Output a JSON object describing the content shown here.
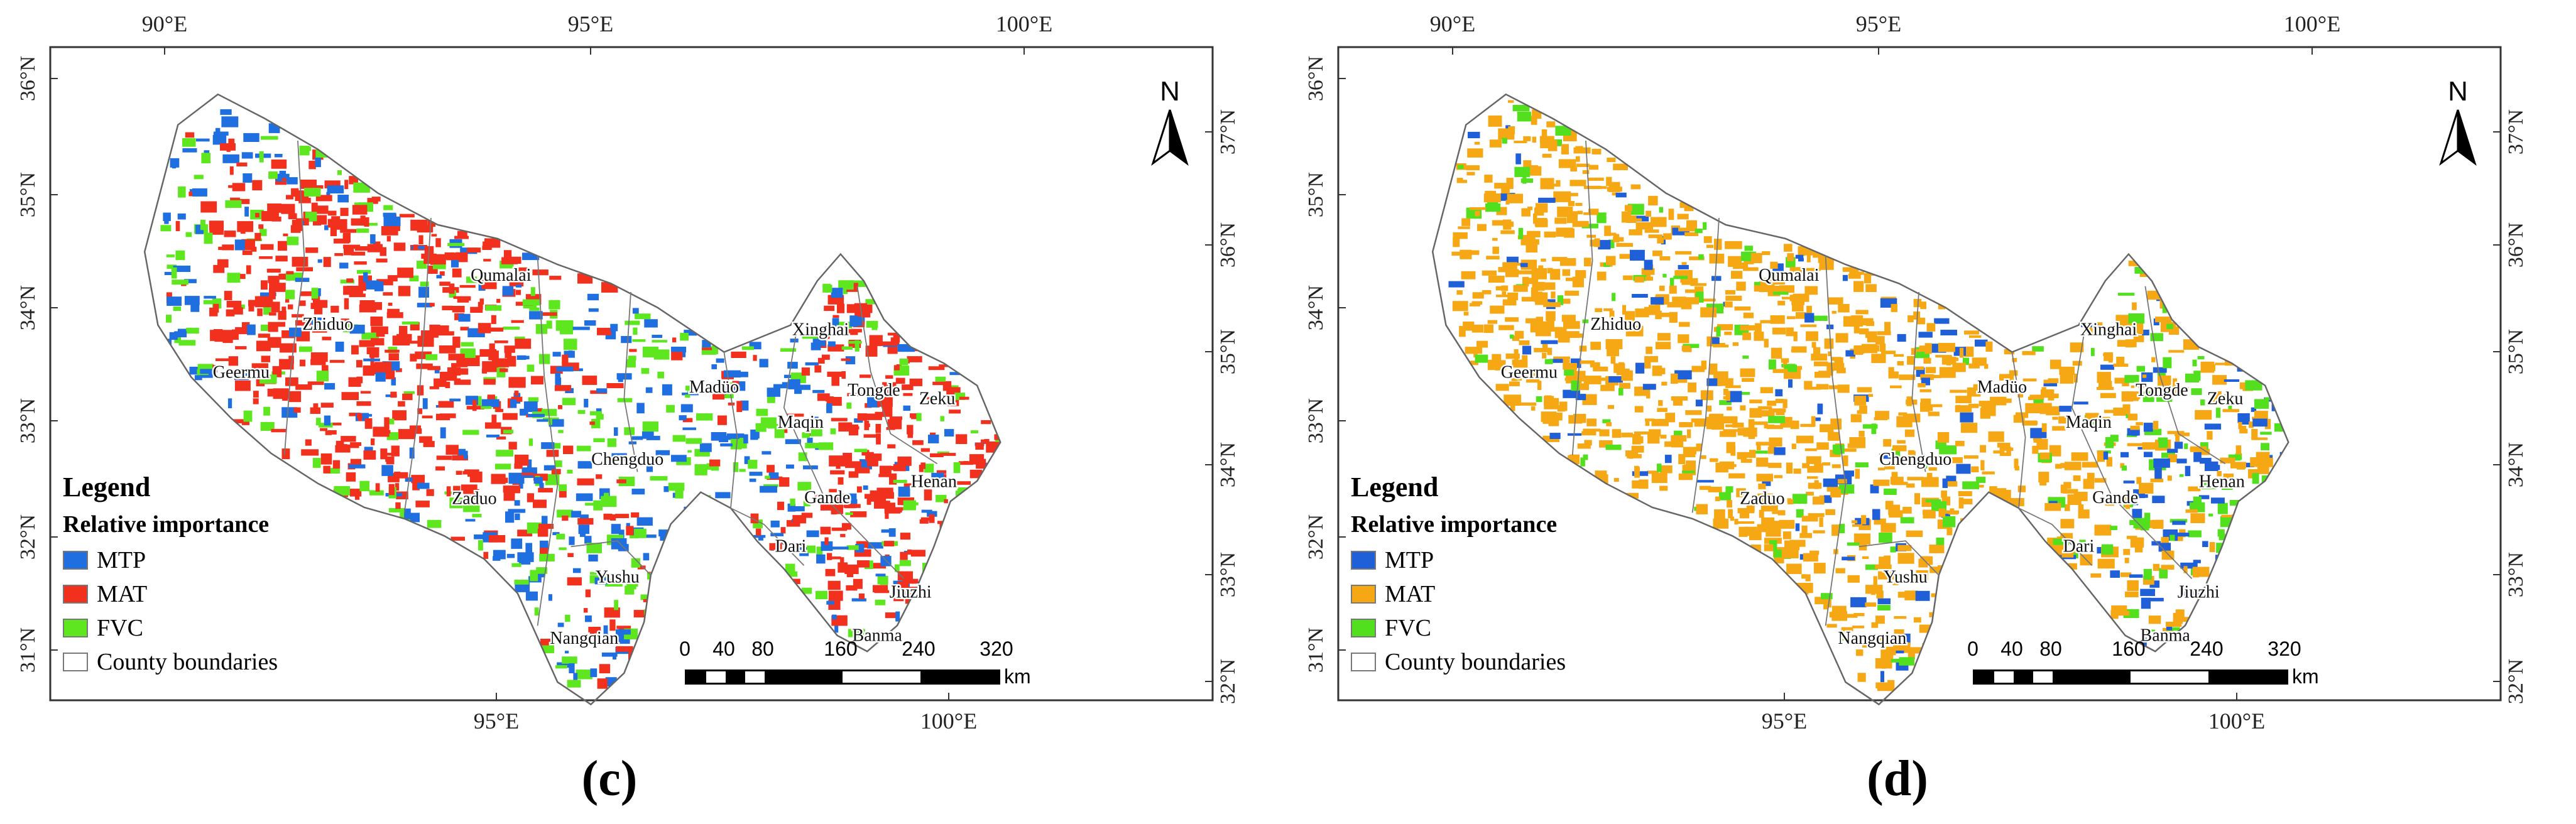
{
  "panels": [
    {
      "label": "(c)",
      "colors": {
        "MTP": "#1f6fe0",
        "MAT": "#f2301e",
        "FVC": "#5ee61e"
      },
      "dominant": "MAT"
    },
    {
      "label": "(d)",
      "colors": {
        "MTP": "#1f5fd8",
        "MAT": "#f5a814",
        "FVC": "#52e01e"
      },
      "dominant": "MAT"
    }
  ],
  "frame": {
    "top_lon_labels": [
      "90°E",
      "95°E",
      "100°E"
    ],
    "bottom_lon_labels": [
      "95°E",
      "100°E"
    ],
    "left_lat_labels": [
      "36°N",
      "35°N",
      "34°N",
      "33°N",
      "32°N",
      "31°N"
    ],
    "right_lat_labels": [
      "37°N",
      "36°N",
      "35°N",
      "34°N",
      "33°N",
      "32°N"
    ]
  },
  "north_arrow": {
    "label": "N"
  },
  "legend": {
    "title": "Legend",
    "subtitle": "Relative importance",
    "items": [
      {
        "key": "MTP",
        "label": "MTP"
      },
      {
        "key": "MAT",
        "label": "MAT"
      },
      {
        "key": "FVC",
        "label": "FVC"
      },
      {
        "key": "boundary",
        "label": "County boundaries"
      }
    ]
  },
  "scale_bar": {
    "ticks": [
      "0",
      "40",
      "80",
      "160",
      "240",
      "320"
    ],
    "tick_km": [
      0,
      40,
      80,
      160,
      240,
      320
    ],
    "unit": "km"
  },
  "counties": [
    {
      "name": "Zhiduo",
      "lon": 92.45,
      "lat": 34.05
    },
    {
      "name": "Qumalai",
      "lon": 95.05,
      "lat": 34.65
    },
    {
      "name": "Geermu",
      "lon": 91.15,
      "lat": 33.55
    },
    {
      "name": "Xinghai",
      "lon": 99.85,
      "lat": 34.55
    },
    {
      "name": "Madüo",
      "lon": 98.25,
      "lat": 33.95
    },
    {
      "name": "Tongde",
      "lon": 100.65,
      "lat": 34.1
    },
    {
      "name": "Zeku",
      "lon": 101.6,
      "lat": 34.1
    },
    {
      "name": "Maqin",
      "lon": 99.55,
      "lat": 33.75
    },
    {
      "name": "Henan",
      "lon": 101.55,
      "lat": 33.4
    },
    {
      "name": "Chengduo",
      "lon": 96.95,
      "lat": 33.25
    },
    {
      "name": "Gande",
      "lon": 99.95,
      "lat": 33.15
    },
    {
      "name": "Zaduo",
      "lon": 94.65,
      "lat": 32.75
    },
    {
      "name": "Dari",
      "lon": 99.4,
      "lat": 32.7
    },
    {
      "name": "Yushu",
      "lon": 96.8,
      "lat": 32.25
    },
    {
      "name": "Jiuzhi",
      "lon": 101.2,
      "lat": 32.45
    },
    {
      "name": "Banma",
      "lon": 100.7,
      "lat": 32.05
    },
    {
      "name": "Nangqian",
      "lon": 96.3,
      "lat": 31.7
    }
  ]
}
